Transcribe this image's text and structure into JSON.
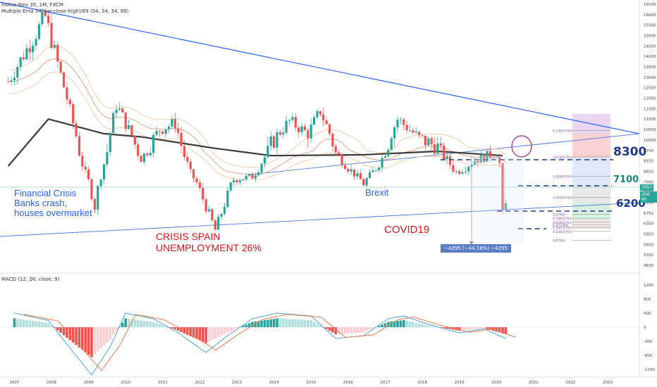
{
  "header": {
    "symbol_line": "Índice Ibex 35, 1M, FXCM",
    "indicator_line": "Multiple Ema 34(low-close-high)/89 (34, 34, 34, 89)",
    "macd_line": "MACD (12, 26, close, 9)"
  },
  "annotations": {
    "financial_crisis": [
      "Financial Crisis",
      "Banks crash,",
      "houses overmarket"
    ],
    "brexit": "Brexit",
    "crisis_spain": [
      "CRISIS SPAIN",
      "UNEMPLOYMENT 26%"
    ],
    "covid": "COVID19",
    "levels": [
      "8300",
      "7100",
      "6200"
    ],
    "measure": "−4295 (−44.18%) −4295"
  },
  "price_tags": {
    "current": "7057",
    "countdown": "20d 6h"
  },
  "colors": {
    "up": "#26a69a",
    "down": "#ef5350",
    "trend": "#2962ff",
    "ema89": "#3b3b3b",
    "ema34": "#e8b48a",
    "level_dark": "#1e3a8a",
    "level_teal": "#1b8a7a"
  },
  "chart_data": [
    {
      "type": "candlestick",
      "title": "",
      "x": [
        "2007",
        "2008",
        "2009",
        "2010",
        "2011",
        "2012",
        "2013",
        "2014",
        "2015",
        "2016",
        "2017",
        "2018",
        "2019",
        "2020",
        "2021",
        "2022",
        "2023"
      ],
      "y_ticks": [
        "16500",
        "16000",
        "15500",
        "15000",
        "14500",
        "14000",
        "13500",
        "13000",
        "12500",
        "12000",
        "11500",
        "11000",
        "10500",
        "10000",
        "9750",
        "9150",
        "8650",
        "7950",
        "7550",
        "7150",
        "6750",
        "6350",
        "5950",
        "5650",
        "5350",
        "4830"
      ],
      "price_path": [
        {
          "x": "2006-11",
          "y": 12800
        },
        {
          "x": "2007-06",
          "y": 14600
        },
        {
          "x": "2007-11",
          "y": 15900
        },
        {
          "x": "2008-06",
          "y": 12000
        },
        {
          "x": "2008-11",
          "y": 9000
        },
        {
          "x": "2009-03",
          "y": 7000
        },
        {
          "x": "2009-10",
          "y": 11700
        },
        {
          "x": "2010-06",
          "y": 9300
        },
        {
          "x": "2010-12",
          "y": 10500
        },
        {
          "x": "2011-05",
          "y": 10800
        },
        {
          "x": "2011-10",
          "y": 8500
        },
        {
          "x": "2012-06",
          "y": 6100
        },
        {
          "x": "2012-12",
          "y": 8100
        },
        {
          "x": "2013-06",
          "y": 8300
        },
        {
          "x": "2013-12",
          "y": 9900
        },
        {
          "x": "2014-06",
          "y": 10900
        },
        {
          "x": "2014-12",
          "y": 10300
        },
        {
          "x": "2015-04",
          "y": 11400
        },
        {
          "x": "2015-09",
          "y": 9600
        },
        {
          "x": "2016-06",
          "y": 7900
        },
        {
          "x": "2016-12",
          "y": 9300
        },
        {
          "x": "2017-05",
          "y": 11000
        },
        {
          "x": "2017-12",
          "y": 10100
        },
        {
          "x": "2018-06",
          "y": 9800
        },
        {
          "x": "2018-12",
          "y": 8600
        },
        {
          "x": "2019-06",
          "y": 9200
        },
        {
          "x": "2020-01",
          "y": 9600
        },
        {
          "x": "2020-02",
          "y": 9000
        },
        {
          "x": "2020-03",
          "y": 6700
        },
        {
          "x": "2020-04",
          "y": 7057
        }
      ],
      "indicators": {
        "ema89": [
          {
            "x": "2006-11",
            "y": 8900
          },
          {
            "x": "2007-12",
            "y": 11000
          },
          {
            "x": "2009-06",
            "y": 10300
          },
          {
            "x": "2010-06",
            "y": 10150
          },
          {
            "x": "2012-06",
            "y": 9800
          },
          {
            "x": "2013-12",
            "y": 9450
          },
          {
            "x": "2016-06",
            "y": 9500
          },
          {
            "x": "2018-06",
            "y": 9700
          },
          {
            "x": "2020-03",
            "y": 9450
          }
        ]
      },
      "fib_levels": [
        {
          "label": "4.236(5764)",
          "y": 10450
        },
        {
          "label": "3.618(5764)",
          "y": 9380
        },
        {
          "label": "2.618(5764)",
          "y": 8320
        },
        {
          "label": "1.618(5764)",
          "y": 7350
        },
        {
          "label": "1(5764)",
          "y": 6700
        },
        {
          "label": "0.786(5764)",
          "y": 6550
        },
        {
          "label": "0.618(5764)",
          "y": 6400
        },
        {
          "label": "0.5(5764)",
          "y": 6300
        },
        {
          "label": "0.382(5764)",
          "y": 6200
        },
        {
          "label": "0.236(5764)",
          "y": 6050
        },
        {
          "label": "0(5764)",
          "y": 5764
        }
      ]
    },
    {
      "type": "bar",
      "title": "",
      "y_ticks": [
        "1200",
        "800",
        "400",
        "0",
        "-400",
        "-800",
        "-1200"
      ],
      "histogram": [
        {
          "x": "2007-01",
          "y": 250
        },
        {
          "x": "2007-12",
          "y": 120
        },
        {
          "x": "2008-06",
          "y": -300
        },
        {
          "x": "2009-02",
          "y": -850
        },
        {
          "x": "2009-08",
          "y": -350
        },
        {
          "x": "2010-01",
          "y": 250
        },
        {
          "x": "2010-10",
          "y": 150
        },
        {
          "x": "2011-06",
          "y": -100
        },
        {
          "x": "2012-03",
          "y": -450
        },
        {
          "x": "2012-10",
          "y": -150
        },
        {
          "x": "2013-06",
          "y": 150
        },
        {
          "x": "2014-02",
          "y": 250
        },
        {
          "x": "2015-01",
          "y": 200
        },
        {
          "x": "2015-09",
          "y": -200
        },
        {
          "x": "2016-06",
          "y": -150
        },
        {
          "x": "2017-02",
          "y": 150
        },
        {
          "x": "2017-07",
          "y": 200
        },
        {
          "x": "2018-03",
          "y": 50
        },
        {
          "x": "2019-01",
          "y": -100
        },
        {
          "x": "2019-09",
          "y": -30
        },
        {
          "x": "2020-04",
          "y": -200
        }
      ]
    }
  ]
}
